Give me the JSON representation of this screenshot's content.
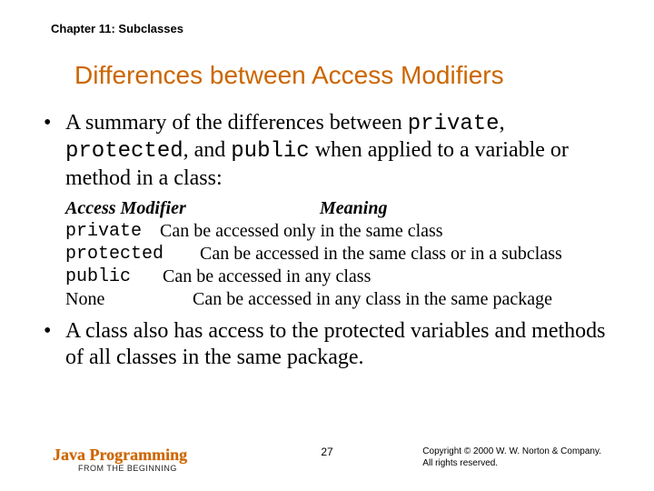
{
  "chapter": "Chapter 11: Subclasses",
  "title": "Differences between Access Modifiers",
  "bullet1": {
    "segments": [
      {
        "t": "A summary of the differences between ",
        "mono": false
      },
      {
        "t": "private",
        "mono": true
      },
      {
        "t": ", ",
        "mono": false
      },
      {
        "t": "protected",
        "mono": true
      },
      {
        "t": ", and ",
        "mono": false
      },
      {
        "t": "public",
        "mono": true
      },
      {
        "t": " when applied to a variable or method in a class:",
        "mono": false
      }
    ]
  },
  "defs": {
    "header_col1": "Access Modifier",
    "header_col2": "Meaning",
    "rows": [
      {
        "name": "private",
        "mono": true,
        "meaning": "Can be accessed only in the same class"
      },
      {
        "name": "protected",
        "mono": true,
        "meaning": "Can be accessed in the same class or in a subclass"
      },
      {
        "name": "public",
        "mono": true,
        "meaning": "Can be accessed in any class"
      },
      {
        "name": "None",
        "mono": false,
        "meaning": "Can be accessed in any class in the same package"
      }
    ]
  },
  "bullet2": "A class also has access to the protected variables and methods of all classes in the same package.",
  "footer": {
    "brand_title": "Java Programming",
    "brand_sub": "FROM THE BEGINNING",
    "pagenum": "27",
    "copyright_line1": "Copyright © 2000 W. W. Norton & Company.",
    "copyright_line2": "All rights reserved."
  },
  "colors": {
    "accent": "#cc6600",
    "text": "#000000",
    "background": "#ffffff"
  }
}
